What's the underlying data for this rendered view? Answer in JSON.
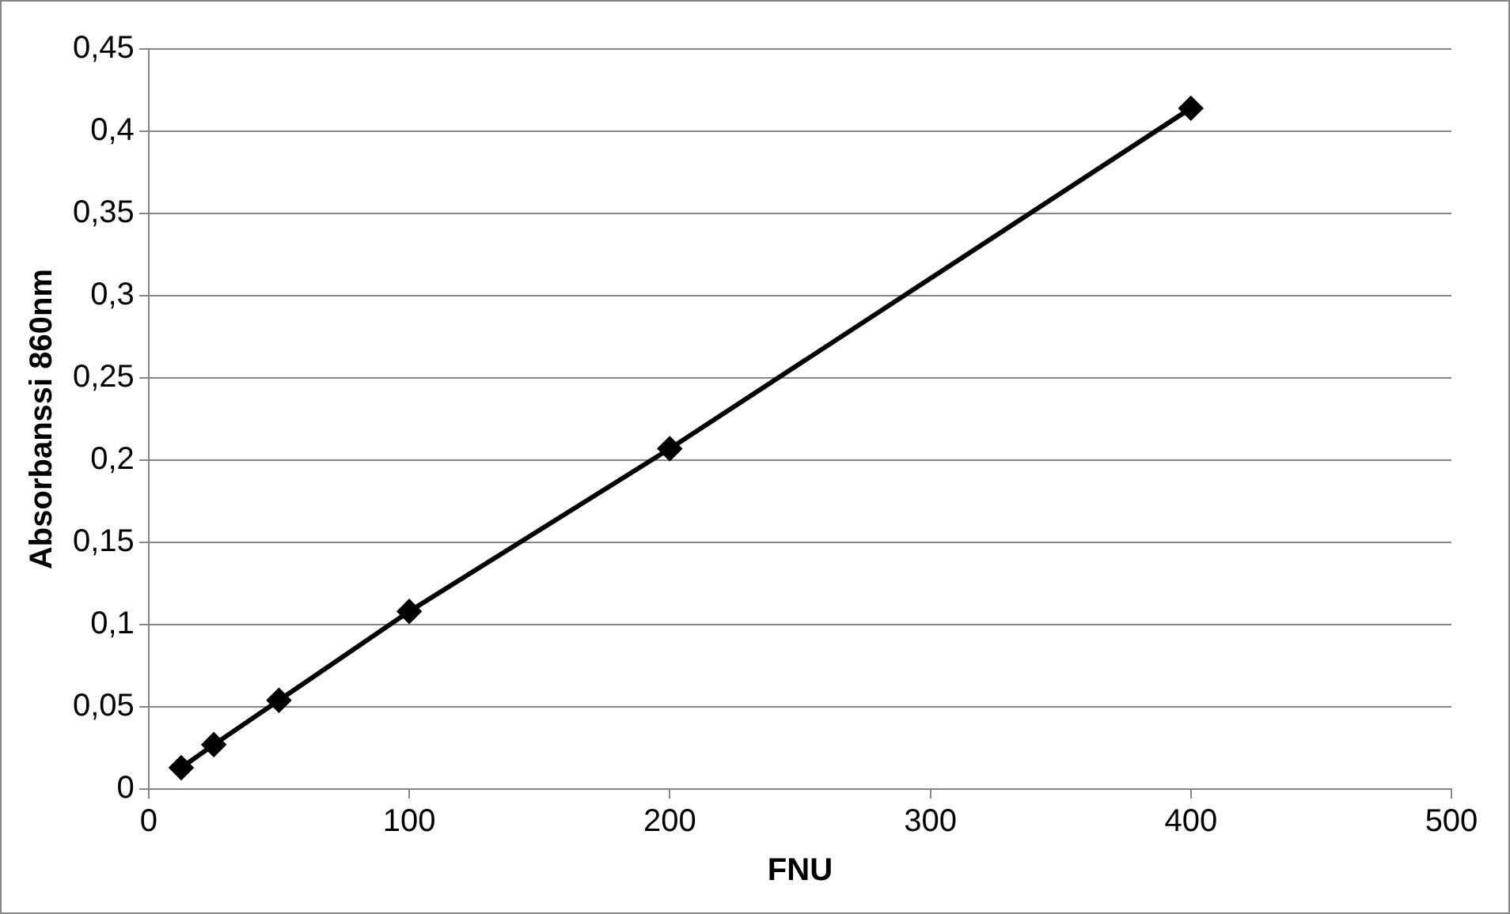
{
  "chart_data": {
    "type": "line",
    "xlabel": "FNU",
    "ylabel": "Absorbanssi 860nm",
    "x": [
      12.5,
      25,
      50,
      100,
      200,
      400
    ],
    "series": [
      {
        "color": "#000000",
        "values": [
          0.013,
          0.027,
          0.054,
          0.108,
          0.207,
          0.414
        ]
      }
    ],
    "xlim": [
      0,
      500
    ],
    "xticks": [
      0,
      100,
      200,
      300,
      400,
      500
    ],
    "ylim": [
      0,
      0.45
    ],
    "yticks": [
      0,
      {
        "value": 0.05,
        "label": "0,05"
      },
      {
        "value": 0.1,
        "label": "0,1"
      },
      {
        "value": 0.15,
        "label": "0,15"
      },
      {
        "value": 0.2,
        "label": "0,2"
      },
      {
        "value": 0.25,
        "label": "0,25"
      },
      {
        "value": 0.3,
        "label": "0,3"
      },
      {
        "value": 0.35,
        "label": "0,35"
      },
      {
        "value": 0.4,
        "label": "0,4"
      },
      {
        "value": 0.45,
        "label": "0,45"
      }
    ],
    "grid": "y",
    "marker": "diamond",
    "line_style": "solid",
    "legend": false
  }
}
